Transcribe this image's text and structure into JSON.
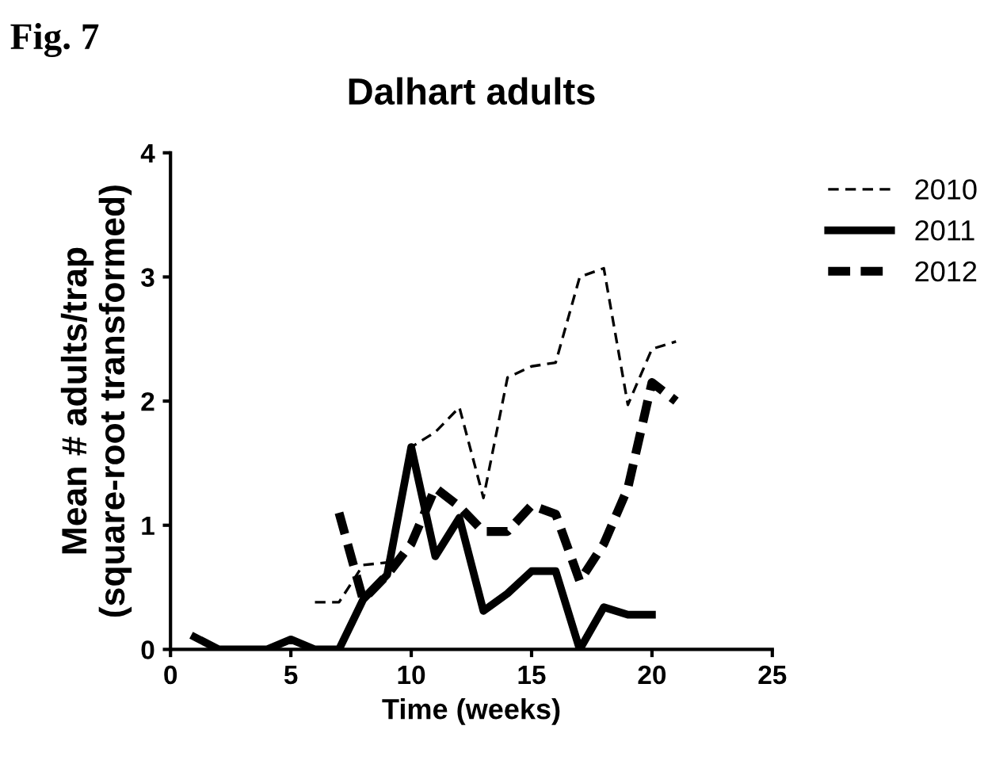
{
  "chart_data": {
    "type": "line",
    "title": "Dalhart adults",
    "xlabel": "Time (weeks)",
    "ylabel": "Mean # adults/trap\n(square-root transformed)",
    "annotations": [
      "Fig. 7"
    ],
    "xlim": [
      0,
      25
    ],
    "xticks": [
      0,
      5,
      10,
      15,
      20,
      25
    ],
    "ylim": [
      0,
      4
    ],
    "yticks": [
      0,
      1,
      2,
      3,
      4
    ],
    "grid": false,
    "legend": "right",
    "marker": "none",
    "series": [
      {
        "name": "2010",
        "color": "#000000",
        "line_style": "dashed",
        "x": [
          6,
          7,
          8,
          9,
          10,
          11,
          12,
          13,
          14,
          15,
          16,
          17,
          18,
          19,
          20,
          21
        ],
        "values": [
          0.38,
          0.38,
          0.68,
          0.7,
          1.63,
          1.75,
          1.95,
          1.22,
          2.19,
          2.28,
          2.31,
          3.0,
          3.07,
          1.97,
          2.42,
          2.48
        ]
      },
      {
        "name": "2011",
        "color": "#000000",
        "line_style": "solid",
        "x": [
          1,
          2,
          3,
          4,
          5,
          6,
          7,
          8,
          9,
          10,
          11,
          12,
          13,
          14,
          15,
          16,
          17,
          18,
          19,
          20
        ],
        "values": [
          0.1,
          0,
          0,
          0,
          0.08,
          0,
          0,
          0.4,
          0.6,
          1.63,
          0.75,
          1.06,
          0.31,
          0.45,
          0.63,
          0.63,
          0,
          0.34,
          0.28,
          0.28
        ]
      },
      {
        "name": "2012",
        "color": "#000000",
        "line_style": "dashed",
        "x": [
          7,
          8,
          9,
          10,
          11,
          12,
          13,
          14,
          15,
          16,
          17,
          18,
          19,
          20,
          21
        ],
        "values": [
          1.1,
          0.4,
          0.6,
          0.85,
          1.3,
          1.15,
          0.95,
          0.95,
          1.16,
          1.09,
          0.55,
          0.85,
          1.3,
          2.15,
          2.0
        ]
      }
    ]
  }
}
